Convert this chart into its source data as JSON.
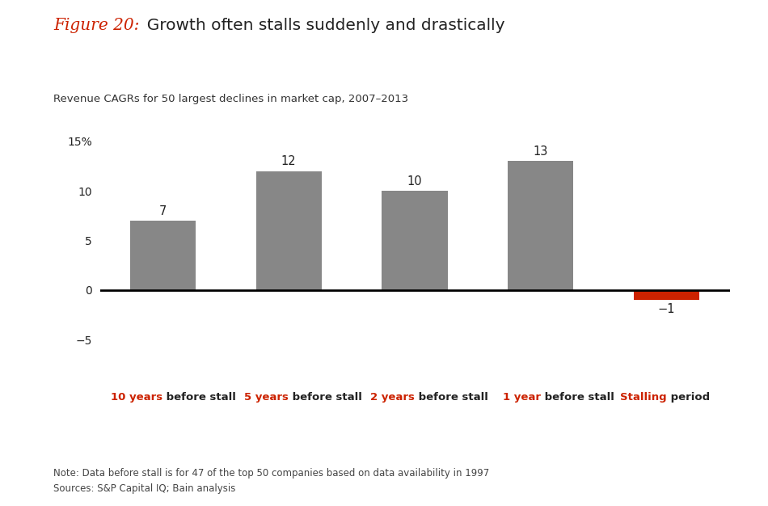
{
  "title_figure": "Figure 20:",
  "title_main": "  Growth often stalls suddenly and drastically",
  "subtitle": "Revenue CAGRs for 50 largest declines in market cap, 2007–2013",
  "categories": [
    "10 years before stall",
    "5 years before stall",
    "2 years before stall",
    "1 year before stall",
    "Stalling period"
  ],
  "categories_red_part": [
    "10 years",
    "5 years",
    "2 years",
    "1 year",
    "Stalling"
  ],
  "categories_black_part": [
    " before stall",
    " before stall",
    " before stall",
    " before stall",
    " period"
  ],
  "values": [
    7,
    12,
    10,
    13,
    -1
  ],
  "bar_colors": [
    "#878787",
    "#878787",
    "#878787",
    "#878787",
    "#cc2200"
  ],
  "value_labels": [
    "7",
    "12",
    "10",
    "13",
    "−1"
  ],
  "ytick_values": [
    -5,
    0,
    5,
    10,
    15
  ],
  "ylim": [
    -7.5,
    17
  ],
  "red_color": "#cc2200",
  "dark_color": "#222222",
  "note_line1": "Note: Data before stall is for 47 of the top 50 companies based on data availability in 1997",
  "note_line2": "Sources: S&P Capital IQ; Bain analysis",
  "background_color": "#ffffff"
}
